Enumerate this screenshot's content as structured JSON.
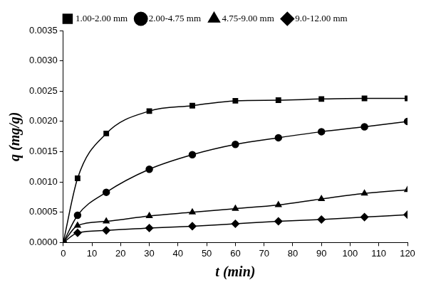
{
  "chart_data": {
    "type": "line",
    "x_label": "t (min)",
    "y_label": "q (mg/g)",
    "xlim": [
      0,
      120
    ],
    "xticks": [
      0,
      10,
      20,
      30,
      40,
      50,
      60,
      70,
      80,
      90,
      100,
      110,
      120
    ],
    "ylim": [
      0,
      0.0035
    ],
    "yticks": [
      {
        "value": 0,
        "label": "0.0000"
      },
      {
        "value": 0.0005,
        "label": "0.0005"
      },
      {
        "value": 0.001,
        "label": "0.0010"
      },
      {
        "value": 0.0015,
        "label": "0.0015"
      },
      {
        "value": 0.002,
        "label": "0.0020"
      },
      {
        "value": 0.0025,
        "label": "0.0025"
      },
      {
        "value": 0.003,
        "label": "0.0030"
      },
      {
        "value": 0.0035,
        "label": "0.0035"
      }
    ],
    "grid": false,
    "legend": "top",
    "x": [
      0,
      5,
      15,
      30,
      45,
      60,
      75,
      90,
      105,
      120
    ],
    "series": [
      {
        "name": "1.00-2.00 mm",
        "color": "#000000",
        "marker": "square",
        "values": [
          0,
          0.00106,
          0.0018,
          0.00217,
          0.00226,
          0.00234,
          0.00235,
          0.00237,
          0.00238,
          0.00238
        ]
      },
      {
        "name": "2.00-4.75 mm",
        "color": "#000000",
        "marker": "circle",
        "values": [
          0,
          0.00045,
          0.00083,
          0.00121,
          0.00145,
          0.00162,
          0.00173,
          0.00183,
          0.00191,
          0.002
        ]
      },
      {
        "name": "4.75-9.00 mm",
        "color": "#000000",
        "marker": "triangle",
        "values": [
          0,
          0.00028,
          0.00035,
          0.00044,
          0.0005,
          0.00056,
          0.00062,
          0.00072,
          0.00081,
          0.00087
        ]
      },
      {
        "name": "9.0-12.00 mm",
        "color": "#000000",
        "marker": "diamond",
        "values": [
          0,
          0.00016,
          0.0002,
          0.00024,
          0.00027,
          0.00031,
          0.00035,
          0.00038,
          0.00042,
          0.00046
        ]
      }
    ]
  }
}
